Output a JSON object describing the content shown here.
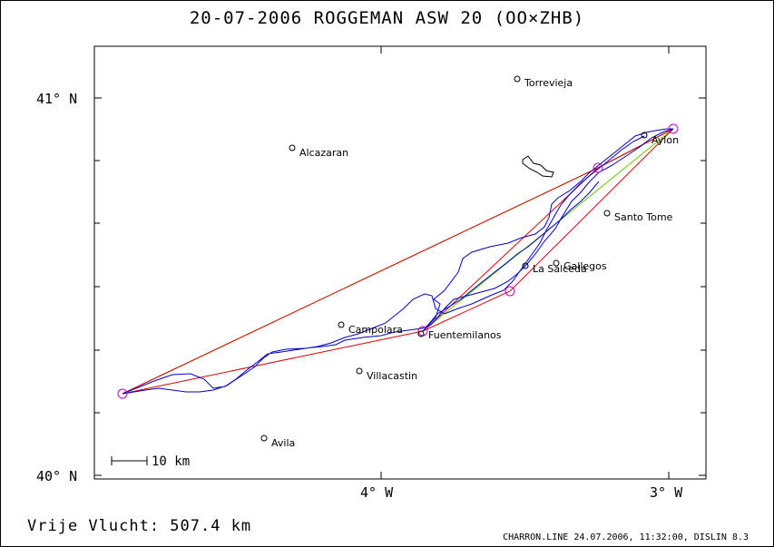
{
  "header": {
    "title": "20-07-2006    ROGGEMAN    ASW 20 (OO×ZHB)"
  },
  "footer": {
    "distance_label": "Vrije Vlucht:  507.4 km",
    "file_info": "CHARRON.LINE 24.07.2006, 11:32:00, DISLIN 8.3"
  },
  "axes": {
    "y_ticks": [
      {
        "label": "41° N"
      },
      {
        "label": "40° N"
      }
    ],
    "x_ticks": [
      {
        "label": "4° W"
      },
      {
        "label": "3° W"
      }
    ]
  },
  "scale_bar": {
    "label": "10 km"
  },
  "places": [
    {
      "name": "Torrevieja"
    },
    {
      "name": "Alcazaran"
    },
    {
      "name": "Aylon"
    },
    {
      "name": "Santo Tome"
    },
    {
      "name": "Gallegos"
    },
    {
      "name": "La Salceda"
    },
    {
      "name": "Campolara"
    },
    {
      "name": "Fuentemilanos"
    },
    {
      "name": "Villacastin"
    },
    {
      "name": "Avila"
    }
  ],
  "colors": {
    "track": "#0000cc",
    "optimized_route": "#dd0000",
    "route_alt": "#66cc00",
    "turnpoint": "#cc00cc",
    "frame": "#000000"
  }
}
